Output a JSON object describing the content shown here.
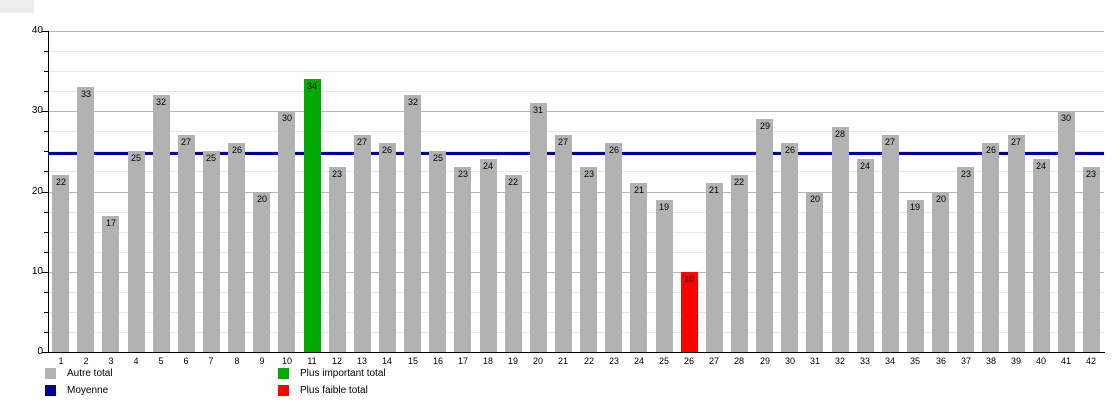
{
  "chart_data": {
    "type": "bar",
    "title": "",
    "xlabel": "",
    "ylabel": "",
    "categories": [
      "1",
      "2",
      "3",
      "4",
      "5",
      "6",
      "7",
      "8",
      "9",
      "10",
      "11",
      "12",
      "13",
      "14",
      "15",
      "16",
      "17",
      "18",
      "19",
      "20",
      "21",
      "22",
      "23",
      "24",
      "25",
      "26",
      "27",
      "28",
      "29",
      "30",
      "31",
      "32",
      "33",
      "34",
      "35",
      "36",
      "37",
      "38",
      "39",
      "40",
      "41",
      "42"
    ],
    "values": [
      22,
      33,
      17,
      25,
      32,
      27,
      25,
      26,
      20,
      30,
      34,
      23,
      27,
      26,
      32,
      25,
      23,
      24,
      22,
      31,
      27,
      23,
      26,
      21,
      19,
      10,
      21,
      22,
      29,
      26,
      20,
      28,
      24,
      27,
      19,
      20,
      23,
      26,
      27,
      24,
      30,
      23
    ],
    "bar_default_color": "#b2b2b2",
    "highlights": [
      {
        "category": "11",
        "value": 34,
        "color": "#00aa00",
        "meaning": "Plus important total"
      },
      {
        "category": "26",
        "value": 10,
        "color": "#ff0000",
        "meaning": "Plus faible total"
      }
    ],
    "average_line": {
      "label": "Moyenne",
      "value": 24.74,
      "color": "#000099"
    },
    "ylim": [
      0,
      40
    ],
    "yticks": [
      "0",
      "10",
      "20",
      "30",
      "40"
    ],
    "minor_grid_step": 2.5,
    "grid": "on",
    "value_labels": "inside-top",
    "legend": {
      "position": "bottom",
      "items": [
        {
          "label": "Autre total",
          "color": "#b2b2b2"
        },
        {
          "label": "Moyenne",
          "color": "#000099"
        },
        {
          "label": "Plus important total",
          "color": "#00aa00"
        },
        {
          "label": "Plus faible total",
          "color": "#ff0000"
        }
      ]
    }
  }
}
